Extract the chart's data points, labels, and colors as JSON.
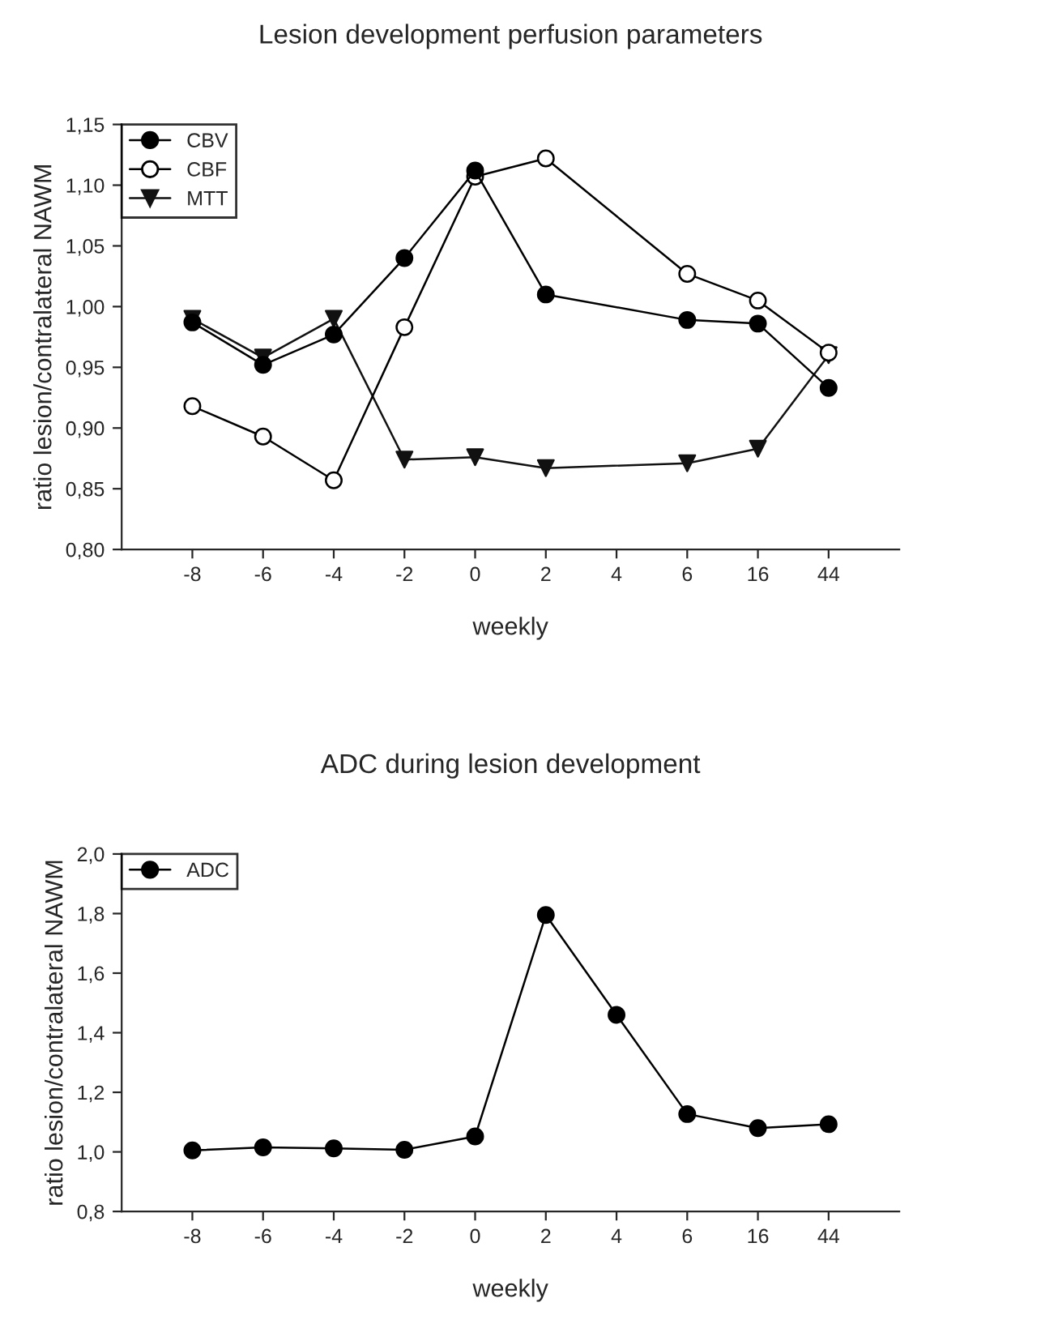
{
  "chart_data": [
    {
      "type": "line",
      "title": "Lesion development perfusion parameters",
      "xlabel": "weekly",
      "ylabel": "ratio lesion/contralateral NAWM",
      "categories": [
        "-8",
        "-6",
        "-4",
        "-2",
        "0",
        "2",
        "4",
        "6",
        "16",
        "44"
      ],
      "series": [
        {
          "name": "CBV",
          "color": "#000000",
          "marker": "circle",
          "values": [
            0.987,
            0.952,
            0.977,
            1.04,
            1.112,
            1.01,
            null,
            0.989,
            0.986,
            0.933
          ]
        },
        {
          "name": "CBF",
          "color": "#ffffff",
          "marker": "circle",
          "values": [
            0.918,
            0.893,
            0.857,
            0.983,
            1.107,
            1.122,
            null,
            1.027,
            1.005,
            0.962
          ]
        },
        {
          "name": "MTT",
          "color": "#111111",
          "marker": "triangle",
          "values": [
            0.99,
            0.958,
            0.99,
            0.874,
            0.876,
            0.867,
            null,
            0.871,
            0.883,
            0.96
          ]
        }
      ],
      "ylim": [
        0.8,
        1.15
      ],
      "yticks": [
        {
          "value": 0.8,
          "label": "0,80"
        },
        {
          "value": 0.85,
          "label": "0,85"
        },
        {
          "value": 0.9,
          "label": "0,90"
        },
        {
          "value": 0.95,
          "label": "0,95"
        },
        {
          "value": 1.0,
          "label": "1,00"
        },
        {
          "value": 1.05,
          "label": "1,05"
        },
        {
          "value": 1.1,
          "label": "1,10"
        },
        {
          "value": 1.15,
          "label": "1,15"
        }
      ],
      "legend": "top left",
      "grid": false,
      "line_style": "solid"
    },
    {
      "type": "line",
      "title": "ADC during lesion development",
      "xlabel": "weekly",
      "ylabel": "ratio lesion/contralateral NAWM",
      "categories": [
        "-8",
        "-6",
        "-4",
        "-2",
        "0",
        "2",
        "4",
        "6",
        "16",
        "44"
      ],
      "series": [
        {
          "name": "ADC",
          "color": "#000000",
          "marker": "circle",
          "values": [
            1.005,
            1.015,
            1.012,
            1.007,
            1.052,
            1.795,
            1.46,
            1.127,
            1.08,
            1.093
          ]
        }
      ],
      "ylim": [
        0.8,
        2.0
      ],
      "yticks": [
        {
          "value": 0.8,
          "label": "0,8"
        },
        {
          "value": 1.0,
          "label": "1,0"
        },
        {
          "value": 1.2,
          "label": "1,2"
        },
        {
          "value": 1.4,
          "label": "1,4"
        },
        {
          "value": 1.6,
          "label": "1,6"
        },
        {
          "value": 1.8,
          "label": "1,8"
        },
        {
          "value": 2.0,
          "label": "2,0"
        }
      ],
      "legend": "top left",
      "grid": false,
      "line_style": "solid"
    }
  ]
}
